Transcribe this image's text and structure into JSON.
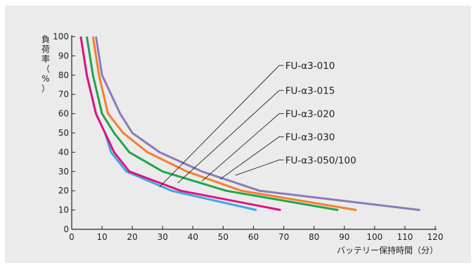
{
  "chart_data": {
    "type": "line",
    "title": "",
    "xlabel": "バッテリー保持時間（分）",
    "ylabel": "負荷率（%）",
    "xlim": [
      0,
      120
    ],
    "ylim": [
      0,
      100
    ],
    "xticks": [
      0,
      10,
      20,
      30,
      40,
      50,
      60,
      70,
      80,
      90,
      100,
      110,
      120
    ],
    "yticks": [
      0,
      10,
      20,
      30,
      40,
      50,
      60,
      70,
      80,
      90,
      100
    ],
    "grid": false,
    "legend_position": "callout-labels",
    "series": [
      {
        "name": "FU-α3-010",
        "color": "#3aa9e6",
        "points": [
          [
            3,
            100
          ],
          [
            5,
            80
          ],
          [
            8,
            60
          ],
          [
            11,
            50
          ],
          [
            13,
            40
          ],
          [
            18,
            30
          ],
          [
            33,
            20
          ],
          [
            61,
            10
          ]
        ]
      },
      {
        "name": "FU-α3-015",
        "color": "#e1127b",
        "points": [
          [
            3,
            100
          ],
          [
            5,
            80
          ],
          [
            8,
            60
          ],
          [
            11,
            50
          ],
          [
            14,
            40
          ],
          [
            19,
            30
          ],
          [
            36,
            20
          ],
          [
            69,
            10
          ]
        ]
      },
      {
        "name": "FU-α3-020",
        "color": "#1ea64a",
        "points": [
          [
            5,
            100
          ],
          [
            7,
            80
          ],
          [
            10,
            60
          ],
          [
            14,
            50
          ],
          [
            19,
            40
          ],
          [
            30,
            30
          ],
          [
            51,
            20
          ],
          [
            88,
            10
          ]
        ]
      },
      {
        "name": "FU-α3-030",
        "color": "#f57e2a",
        "points": [
          [
            7,
            100
          ],
          [
            9,
            80
          ],
          [
            12,
            60
          ],
          [
            17,
            50
          ],
          [
            25,
            40
          ],
          [
            38,
            30
          ],
          [
            56,
            20
          ],
          [
            94,
            10
          ]
        ]
      },
      {
        "name": "FU-α3-050/100",
        "color": "#8a7bb8",
        "points": [
          [
            8,
            100
          ],
          [
            10,
            80
          ],
          [
            13,
            70
          ],
          [
            16,
            60
          ],
          [
            20,
            50
          ],
          [
            29,
            40
          ],
          [
            43,
            30
          ],
          [
            62,
            20
          ],
          [
            115,
            10
          ]
        ]
      }
    ],
    "callouts": [
      {
        "series": 0,
        "anchor": [
          29,
          22
        ],
        "label_y": 85
      },
      {
        "series": 1,
        "anchor": [
          35,
          24
        ],
        "label_y": 72
      },
      {
        "series": 2,
        "anchor": [
          43,
          25
        ],
        "label_y": 60
      },
      {
        "series": 3,
        "anchor": [
          49,
          26
        ],
        "label_y": 48
      },
      {
        "series": 4,
        "anchor": [
          54,
          28
        ],
        "label_y": 36
      }
    ]
  }
}
